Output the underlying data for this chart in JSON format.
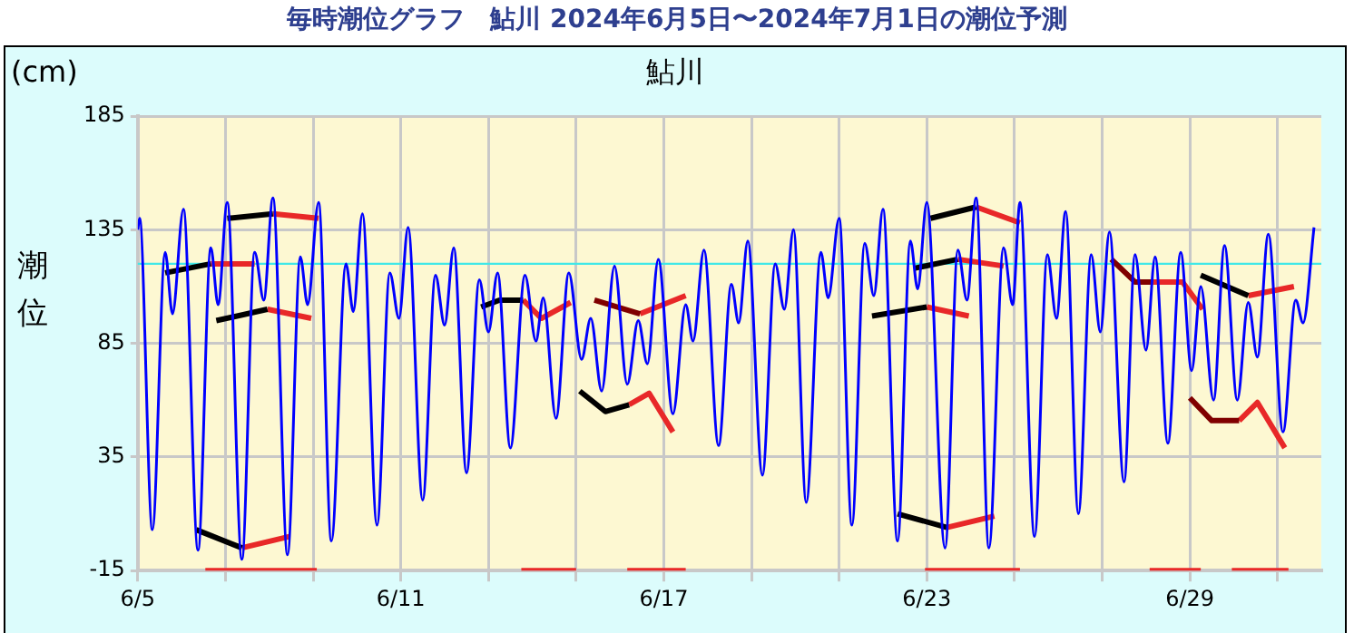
{
  "chart_data": {
    "type": "line",
    "title": "毎時潮位グラフ　鮎川  2024年6月5日〜2024年7月1日の潮位予測",
    "subtitle": "鮎川",
    "ylabel": "潮位",
    "annotations": [
      "(cm)"
    ],
    "xlim": [
      "2024-06-05",
      "2024-07-02"
    ],
    "xticks": [
      {
        "value": "2024-06-05",
        "label": "6/5"
      },
      {
        "value": "2024-06-07",
        "label": null
      },
      {
        "value": "2024-06-09",
        "label": null
      },
      {
        "value": "2024-06-11",
        "label": "6/11"
      },
      {
        "value": "2024-06-13",
        "label": null
      },
      {
        "value": "2024-06-15",
        "label": null
      },
      {
        "value": "2024-06-17",
        "label": "6/17"
      },
      {
        "value": "2024-06-19",
        "label": null
      },
      {
        "value": "2024-06-21",
        "label": null
      },
      {
        "value": "2024-06-23",
        "label": "6/23"
      },
      {
        "value": "2024-06-25",
        "label": null
      },
      {
        "value": "2024-06-27",
        "label": null
      },
      {
        "value": "2024-06-29",
        "label": "6/29"
      },
      {
        "value": "2024-07-01",
        "label": null
      }
    ],
    "ylim": [
      -15,
      185
    ],
    "yticks": [
      -15,
      35,
      85,
      135,
      185
    ],
    "grid": true,
    "legend": false,
    "marker": "none",
    "ref_lines": [
      {
        "axis": "y",
        "value": 120,
        "color": "#40e8e8"
      }
    ],
    "series": [
      {
        "color": "#0000ff",
        "x": [
          "2024-06-05T00:00",
          "2024-06-05T01:00",
          "2024-06-05T08:00",
          "2024-06-05T15:00",
          "2024-06-05T19:00",
          "2024-06-06T01:00",
          "2024-06-06T09:00",
          "2024-06-06T16:00",
          "2024-06-06T20:00",
          "2024-06-07T01:00",
          "2024-06-07T09:00",
          "2024-06-07T16:00",
          "2024-06-07T21:00",
          "2024-06-08T02:00",
          "2024-06-08T10:00",
          "2024-06-08T17:00",
          "2024-06-08T21:00",
          "2024-06-09T03:00",
          "2024-06-09T10:00",
          "2024-06-09T18:00",
          "2024-06-09T22:00",
          "2024-06-10T03:00",
          "2024-06-10T11:00",
          "2024-06-10T18:00",
          "2024-06-10T23:00",
          "2024-06-11T04:00",
          "2024-06-11T12:00",
          "2024-06-11T19:00",
          "2024-06-12T00:00",
          "2024-06-12T05:00",
          "2024-06-12T12:00",
          "2024-06-12T19:00",
          "2024-06-13T00:00",
          "2024-06-13T05:00",
          "2024-06-13T12:00",
          "2024-06-13T20:00",
          "2024-06-14T02:00",
          "2024-06-14T06:00",
          "2024-06-14T13:00",
          "2024-06-14T20:00",
          "2024-06-15T03:00",
          "2024-06-15T08:00",
          "2024-06-15T14:00",
          "2024-06-15T21:00",
          "2024-06-16T04:00",
          "2024-06-16T10:00",
          "2024-06-16T15:00",
          "2024-06-16T21:00",
          "2024-06-17T05:00",
          "2024-06-17T12:00",
          "2024-06-17T16:00",
          "2024-06-17T22:00",
          "2024-06-18T06:00",
          "2024-06-18T13:00",
          "2024-06-18T17:00",
          "2024-06-18T22:00",
          "2024-06-19T06:00",
          "2024-06-19T13:00",
          "2024-06-19T18:00",
          "2024-06-19T23:00",
          "2024-06-20T06:00",
          "2024-06-20T14:00",
          "2024-06-20T18:00",
          "2024-06-21T00:00",
          "2024-06-21T07:00",
          "2024-06-21T14:00",
          "2024-06-21T19:00",
          "2024-06-22T00:00",
          "2024-06-22T08:00",
          "2024-06-22T15:00",
          "2024-06-22T19:00",
          "2024-06-23T00:00",
          "2024-06-23T10:00",
          "2024-06-23T17:00",
          "2024-06-23T22:00",
          "2024-06-24T03:00",
          "2024-06-24T10:00",
          "2024-06-24T18:00",
          "2024-06-24T23:00",
          "2024-06-25T03:00",
          "2024-06-25T11:00",
          "2024-06-25T18:00",
          "2024-06-25T23:00",
          "2024-06-26T04:00",
          "2024-06-26T11:00",
          "2024-06-26T18:00",
          "2024-06-26T23:00",
          "2024-06-27T04:00",
          "2024-06-27T12:00",
          "2024-06-27T18:00",
          "2024-06-28T00:00",
          "2024-06-28T05:00",
          "2024-06-28T12:00",
          "2024-06-28T19:00",
          "2024-06-29T01:00",
          "2024-06-29T06:00",
          "2024-06-29T13:00",
          "2024-06-29T19:00",
          "2024-06-30T02:00",
          "2024-06-30T08:00",
          "2024-06-30T13:00",
          "2024-06-30T19:00",
          "2024-07-01T03:00",
          "2024-07-01T10:00",
          "2024-07-01T14:00",
          "2024-07-01T20:00"
        ],
        "values": [
          135,
          140,
          3,
          125,
          98,
          144,
          -6,
          127,
          102,
          147,
          -10,
          125,
          104,
          149,
          -8,
          123,
          102,
          147,
          -2,
          120,
          99,
          142,
          5,
          116,
          96,
          136,
          16,
          115,
          93,
          127,
          28,
          113,
          90,
          116,
          39,
          115,
          86,
          105,
          52,
          116,
          78,
          96,
          64,
          119,
          67,
          95,
          76,
          122,
          54,
          102,
          86,
          126,
          40,
          111,
          94,
          130,
          27,
          120,
          100,
          135,
          15,
          125,
          105,
          140,
          5,
          129,
          106,
          144,
          -2,
          130,
          109,
          147,
          -5,
          126,
          104,
          149,
          -5,
          127,
          102,
          147,
          0,
          124,
          96,
          143,
          10,
          124,
          90,
          134,
          24,
          124,
          82,
          123,
          41,
          125,
          73,
          110,
          60,
          128,
          60,
          103,
          79,
          133,
          46,
          104,
          94,
          136
        ]
      },
      {
        "color": "#000000",
        "x": [
          "2024-06-05T15:00",
          "2024-06-06T16:00"
        ],
        "values": [
          116,
          120
        ]
      },
      {
        "color": "#e82828",
        "x": [
          "2024-06-06T16:00",
          "2024-06-07T16:00"
        ],
        "values": [
          120,
          120
        ]
      },
      {
        "color": "#000000",
        "x": [
          "2024-06-07T01:00",
          "2024-06-08T02:00"
        ],
        "values": [
          140,
          142
        ]
      },
      {
        "color": "#e82828",
        "x": [
          "2024-06-08T02:00",
          "2024-06-09T03:00"
        ],
        "values": [
          142,
          140
        ]
      },
      {
        "color": "#000000",
        "x": [
          "2024-06-06T19:00",
          "2024-06-07T23:00"
        ],
        "values": [
          95,
          100
        ]
      },
      {
        "color": "#e82828",
        "x": [
          "2024-06-07T23:00",
          "2024-06-08T23:00"
        ],
        "values": [
          100,
          96
        ]
      },
      {
        "color": "#000000",
        "x": [
          "2024-06-06T08:00",
          "2024-06-07T09:00"
        ],
        "values": [
          3,
          -5
        ]
      },
      {
        "color": "#e82828",
        "x": [
          "2024-06-07T09:00",
          "2024-06-08T11:00"
        ],
        "values": [
          -5,
          0
        ]
      },
      {
        "color": "#000000",
        "x": [
          "2024-06-12T20:00",
          "2024-06-13T06:00",
          "2024-06-13T19:00"
        ],
        "values": [
          101,
          104,
          104
        ]
      },
      {
        "color": "#e82828",
        "x": [
          "2024-06-13T19:00",
          "2024-06-14T05:00",
          "2024-06-14T21:00"
        ],
        "values": [
          104,
          96,
          103
        ]
      },
      {
        "color": "#800000",
        "x": [
          "2024-06-15T10:00",
          "2024-06-16T11:00"
        ],
        "values": [
          104,
          98
        ]
      },
      {
        "color": "#e82828",
        "x": [
          "2024-06-16T11:00",
          "2024-06-17T12:00"
        ],
        "values": [
          98,
          106
        ]
      },
      {
        "color": "#000000",
        "x": [
          "2024-06-15T02:00",
          "2024-06-15T16:00",
          "2024-06-16T05:00"
        ],
        "values": [
          64,
          55,
          58
        ]
      },
      {
        "color": "#e82828",
        "x": [
          "2024-06-16T05:00",
          "2024-06-16T16:00",
          "2024-06-17T05:00"
        ],
        "values": [
          58,
          63,
          46
        ]
      },
      {
        "color": "#000000",
        "x": [
          "2024-06-21T18:00",
          "2024-06-23T00:00"
        ],
        "values": [
          97,
          101
        ]
      },
      {
        "color": "#e82828",
        "x": [
          "2024-06-23T00:00",
          "2024-06-23T23:00"
        ],
        "values": [
          101,
          97
        ]
      },
      {
        "color": "#000000",
        "x": [
          "2024-06-22T17:00",
          "2024-06-23T17:00"
        ],
        "values": [
          118,
          122
        ]
      },
      {
        "color": "#e82828",
        "x": [
          "2024-06-23T17:00",
          "2024-06-24T18:00"
        ],
        "values": [
          122,
          119
        ]
      },
      {
        "color": "#000000",
        "x": [
          "2024-06-23T02:00",
          "2024-06-24T03:00"
        ],
        "values": [
          140,
          145
        ]
      },
      {
        "color": "#e82828",
        "x": [
          "2024-06-24T03:00",
          "2024-06-25T03:00"
        ],
        "values": [
          145,
          138
        ]
      },
      {
        "color": "#000000",
        "x": [
          "2024-06-22T08:00",
          "2024-06-23T11:00"
        ],
        "values": [
          10,
          4
        ]
      },
      {
        "color": "#e82828",
        "x": [
          "2024-06-23T11:00",
          "2024-06-24T13:00"
        ],
        "values": [
          4,
          9
        ]
      },
      {
        "color": "#800000",
        "x": [
          "2024-06-27T05:00",
          "2024-06-27T18:00",
          "2024-06-28T03:00"
        ],
        "values": [
          122,
          112,
          112
        ]
      },
      {
        "color": "#e82828",
        "x": [
          "2024-06-28T03:00",
          "2024-06-28T20:00",
          "2024-06-29T07:00"
        ],
        "values": [
          112,
          112,
          100
        ]
      },
      {
        "color": "#000000",
        "x": [
          "2024-06-29T06:00",
          "2024-06-30T08:00"
        ],
        "values": [
          115,
          106
        ]
      },
      {
        "color": "#e82828",
        "x": [
          "2024-06-30T08:00",
          "2024-07-01T09:00"
        ],
        "values": [
          106,
          110
        ]
      },
      {
        "color": "#800000",
        "x": [
          "2024-06-29T00:00",
          "2024-06-29T12:00",
          "2024-06-30T03:00"
        ],
        "values": [
          61,
          51,
          51
        ]
      },
      {
        "color": "#e82828",
        "x": [
          "2024-06-30T03:00",
          "2024-06-30T13:00",
          "2024-07-01T04:00"
        ],
        "values": [
          51,
          59,
          39
        ]
      },
      {
        "color": "#e82828",
        "x": [
          "2024-06-06T13:00",
          "2024-06-09T02:00",
          "2024-06-09T03:00",
          "2024-06-13T18:00",
          "2024-06-15T00:00",
          "2024-06-15T01:00",
          "2024-06-16T04:00",
          "2024-06-17T12:00",
          "2024-06-17T13:00",
          "2024-06-22T23:00",
          "2024-06-25T03:00",
          "2024-06-25T04:00",
          "2024-06-28T02:00",
          "2024-06-29T06:00",
          "2024-06-29T07:00",
          "2024-06-29T23:00",
          "2024-07-01T06:00"
        ],
        "values": [
          -15,
          -15,
          null,
          -15,
          -15,
          null,
          -15,
          -15,
          null,
          -15,
          -15,
          null,
          -15,
          -15,
          null,
          -15,
          -15
        ]
      }
    ]
  }
}
